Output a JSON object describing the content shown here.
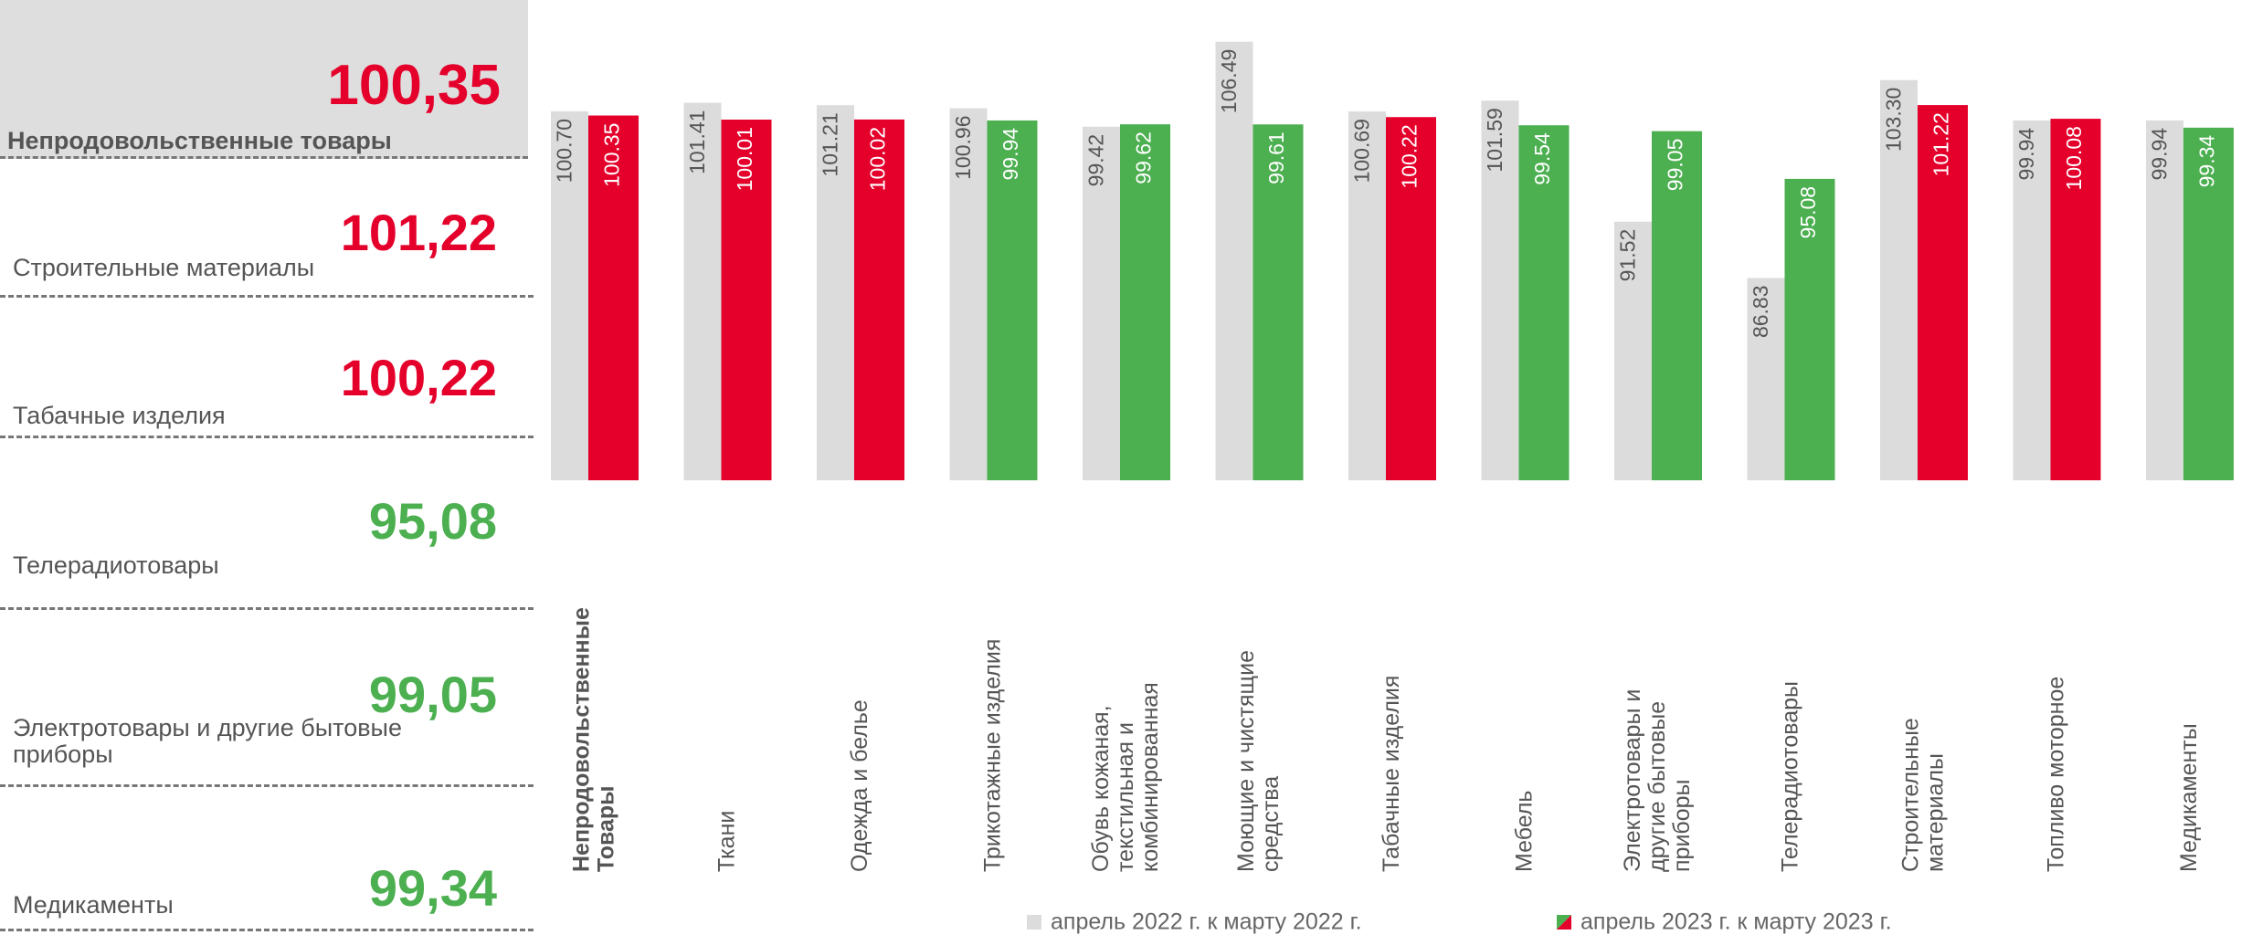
{
  "chart_data": {
    "type": "bar",
    "categories": [
      "Непродовольственные Товары",
      "Ткани",
      "Одежда и белье",
      "Трикотажные изделия",
      "Обувь кожаная, текстильная и комбинированная",
      "Моющие и чистящие средства",
      "Табачные изделия",
      "Мебель",
      "Электротовары и другие бытовые приборы",
      "Телерадиотовары",
      "Строительные материалы",
      "Топливо моторное",
      "Медикаменты"
    ],
    "series": [
      {
        "name": "апрель 2022 г. к марту 2022 г.",
        "color": "#dcdcdc",
        "values": [
          100.7,
          101.41,
          101.21,
          100.96,
          99.42,
          106.49,
          100.69,
          101.59,
          91.52,
          86.83,
          103.3,
          99.94,
          99.94
        ],
        "value_labels": [
          "100.70",
          "101.41",
          "101.21",
          "100.96",
          "99.42",
          "106.49",
          "100.69",
          "101.59",
          "91.52",
          "86.83",
          "103.30",
          "99.94",
          "99.94"
        ]
      },
      {
        "name": "апрель 2023 г. к марту 2023 г.",
        "color": "#e4002b",
        "colors": [
          "#e4002b",
          "#e4002b",
          "#e4002b",
          "#4caf50",
          "#4caf50",
          "#4caf50",
          "#e4002b",
          "#4caf50",
          "#4caf50",
          "#4caf50",
          "#e4002b",
          "#e4002b",
          "#4caf50"
        ],
        "values": [
          100.35,
          100.01,
          100.02,
          99.94,
          99.62,
          99.61,
          100.22,
          99.54,
          99.05,
          95.08,
          101.22,
          100.08,
          99.34
        ],
        "value_labels": [
          "100.35",
          "100.01",
          "100.02",
          "99.94",
          "99.62",
          "99.61",
          "100.22",
          "99.54",
          "99.05",
          "95.08",
          "101.22",
          "100.08",
          "99.34"
        ]
      }
    ],
    "ylim": [
      70,
      107
    ]
  },
  "summary": [
    {
      "label": "Непродовольственные товары",
      "value": "100,35",
      "color": "#e4002b"
    },
    {
      "label": "Строительные материалы",
      "value": "101,22",
      "color": "#e4002b"
    },
    {
      "label": "Табачные изделия",
      "value": "100,22",
      "color": "#e4002b"
    },
    {
      "label": "Телерадиотовары",
      "value": "95,08",
      "color": "#4caf50"
    },
    {
      "label": "Электротовары и другие бытовые приборы",
      "value": "99,05",
      "color": "#4caf50"
    },
    {
      "label": "Медикаменты",
      "value": "99,34",
      "color": "#4caf50"
    }
  ]
}
